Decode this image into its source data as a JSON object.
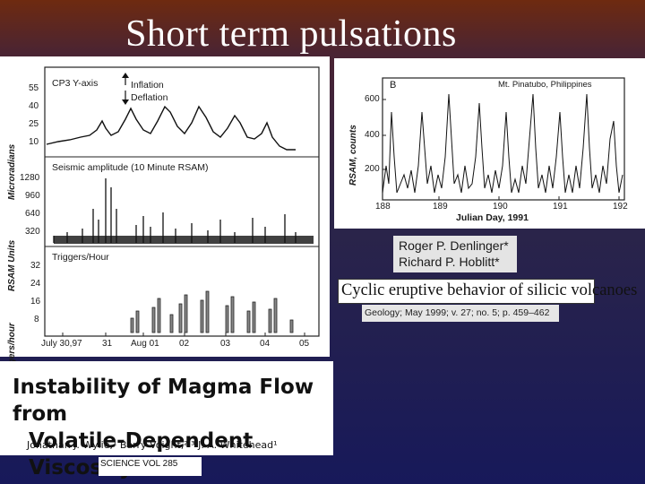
{
  "slide": {
    "title": "Short term pulsations"
  },
  "left_figure": {
    "panel1": {
      "ylabel": "Microradians",
      "label": "CP3 Y-axis",
      "ticks": [
        "55",
        "40",
        "25",
        "10"
      ],
      "inflation": "Inflation",
      "deflation": "Deflation"
    },
    "panel2": {
      "ylabel": "RSAM Units",
      "label": "Seismic amplitude (10 Minute RSAM)",
      "ticks": [
        "1280",
        "960",
        "640",
        "320"
      ]
    },
    "panel3": {
      "ylabel": "Triggers/hour",
      "label": "Triggers/Hour",
      "ticks": [
        "32",
        "24",
        "16",
        "8"
      ]
    },
    "xticks": [
      "July 30,97",
      "31",
      "Aug 01",
      "02",
      "03",
      "04",
      "05"
    ]
  },
  "right_figure": {
    "panel_letter": "B",
    "location": "Mt. Pinatubo, Philippines",
    "ylabel": "RSAM, counts",
    "yticks": [
      "600",
      "400",
      "200"
    ],
    "xticks": [
      "188",
      "189",
      "190",
      "191",
      "192"
    ],
    "xlabel": "Julian Day, 1991"
  },
  "paper1": {
    "title_line1": "Instability of Magma Flow from",
    "title_line2": "Volatile-Dependent Viscosity",
    "authors": "Jonathan J. Wylie,¹ Barry Voight,²·³ J. A. Whitehead¹",
    "journal": "SCIENCE   VOL 285"
  },
  "paper2": {
    "author1": "Roger P. Denlinger*",
    "author2": "Richard P. Hoblitt*",
    "title": "Cyclic eruptive behavior of silicic volcanoes",
    "citation": "Geology; May 1999; v. 27; no. 5; p. 459–462"
  }
}
